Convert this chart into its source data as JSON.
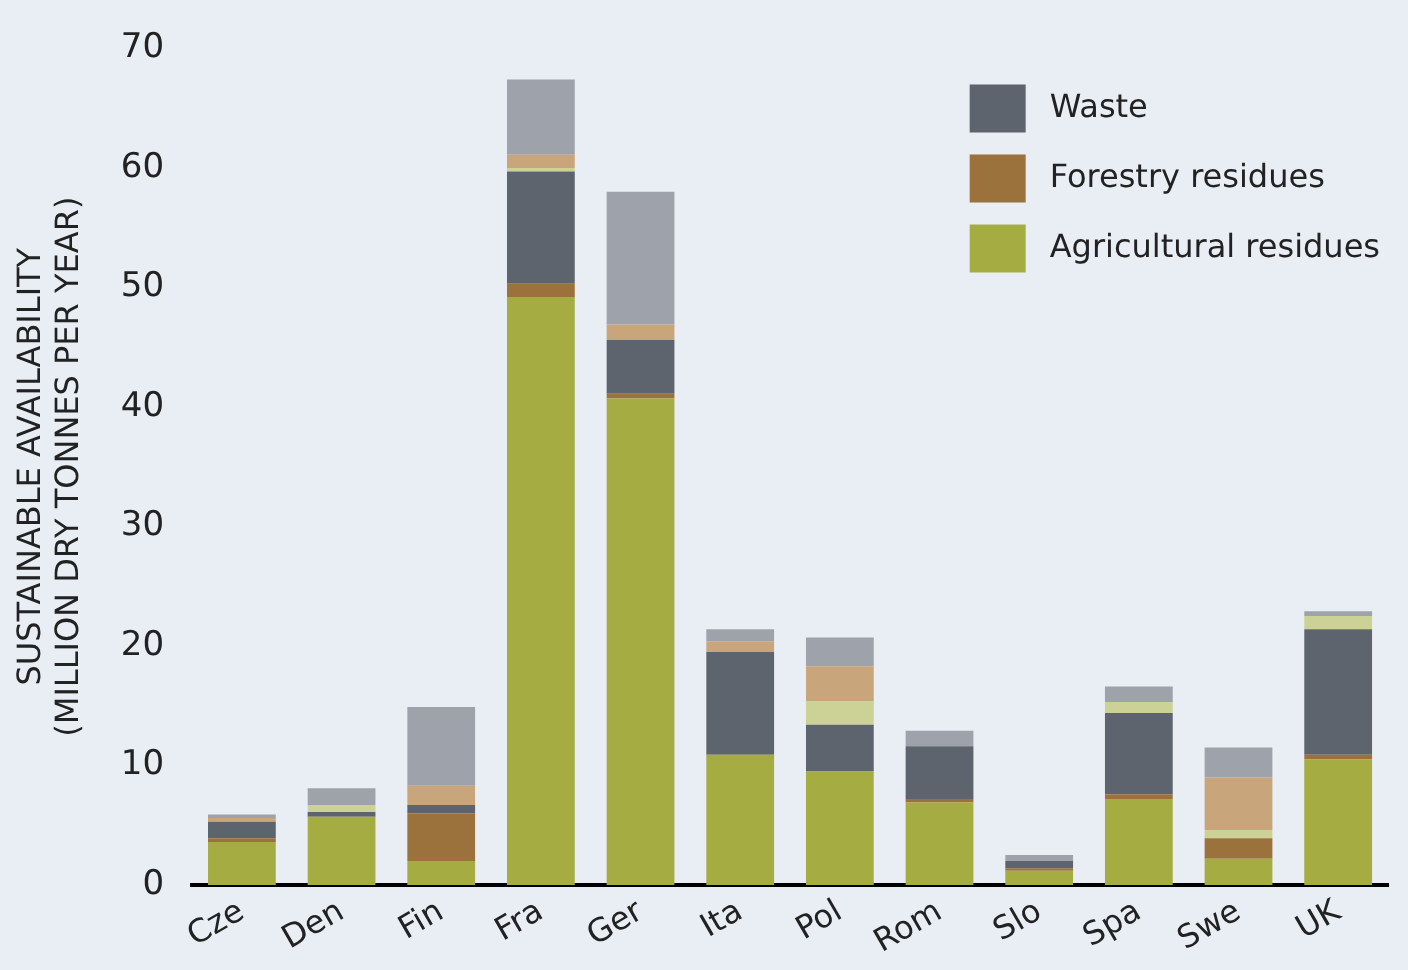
{
  "chart_data": {
    "type": "bar",
    "stacked": true,
    "ylabel": "SUSTAINABLE AVAILABILITY\n(MILLION DRY TONNES PER YEAR)",
    "categories": [
      "Cze",
      "Den",
      "Fin",
      "Fra",
      "Ger",
      "Ita",
      "Pol",
      "Rom",
      "Slo",
      "Spa",
      "Swe",
      "UK"
    ],
    "series": [
      {
        "name": "Agricultural residues",
        "color": "#a5ad42",
        "values": [
          3.6,
          5.7,
          2.0,
          49.2,
          40.7,
          10.9,
          9.5,
          6.9,
          1.2,
          7.2,
          2.2,
          10.5
        ]
      },
      {
        "name": "Forestry residues",
        "color": "#9b713c",
        "values": [
          0.3,
          0,
          4.0,
          1.1,
          0.4,
          0,
          0,
          0.3,
          0.2,
          0.4,
          1.7,
          0.4
        ]
      },
      {
        "name": "Waste",
        "color": "#5e646d",
        "values": [
          1.4,
          0.4,
          0.7,
          9.4,
          4.5,
          8.6,
          3.9,
          4.4,
          0.6,
          6.8,
          0,
          10.5
        ]
      },
      {
        "color": "#ccd296",
        "values": [
          0,
          0.6,
          0,
          0.3,
          0,
          0,
          2.0,
          0,
          0,
          0.9,
          0.7,
          1.1
        ]
      },
      {
        "color": "#c8a57a",
        "values": [
          0.3,
          0,
          1.6,
          1.1,
          1.3,
          0.9,
          2.9,
          0,
          0,
          0,
          4.4,
          0
        ]
      },
      {
        "color": "#9ea3ab",
        "values": [
          0.3,
          1.4,
          6.6,
          6.3,
          11.1,
          1.0,
          2.4,
          1.3,
          0.5,
          1.3,
          2.5,
          0.4
        ]
      }
    ],
    "ylim": [
      0,
      70
    ],
    "yticks": [
      0,
      10,
      20,
      30,
      40,
      50,
      60,
      70
    ],
    "grid": false,
    "legend": "top right"
  }
}
